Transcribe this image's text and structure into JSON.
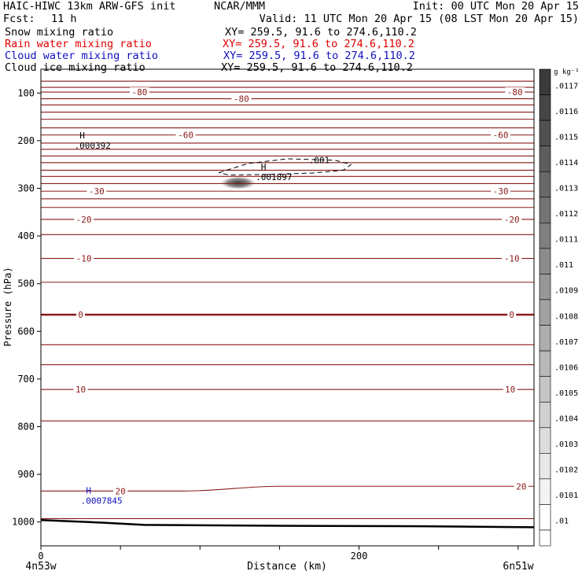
{
  "header": {
    "model": "HAIC-HIWC 13km ARW-GFS init",
    "org": "NCAR/MMM",
    "init": "Init: 00 UTC Mon 20 Apr 15",
    "fcst_label": "Fcst:",
    "fcst_value": "11 h",
    "valid": "Valid: 11 UTC Mon 20 Apr 15 (08 LST Mon 20 Apr 15)",
    "fields": [
      {
        "name": "Snow mixing ratio",
        "xy": "XY= 259.5, 91.6 to 274.6,110.2",
        "color": "#000000"
      },
      {
        "name": "Rain water mixing ratio",
        "xy": "XY= 259.5, 91.6 to 274.6,110.2",
        "color": "#e00000"
      },
      {
        "name": "Cloud water mixing ratio",
        "xy": "XY= 259.5, 91.6 to 274.6,110.2",
        "color": "#1010c0"
      },
      {
        "name": "Cloud ice mixing ratio",
        "xy": "XY= 259.5, 91.6 to 274.6,110.2",
        "color": "#000000"
      }
    ]
  },
  "chart_data": {
    "type": "cross-section",
    "xlabel": "Distance (km)",
    "ylabel": "Pressure (hPa)",
    "xlim": [
      0,
      310
    ],
    "ylim": [
      1050,
      50
    ],
    "x_ticks": [
      0,
      50,
      100,
      150,
      200,
      250,
      300
    ],
    "x_tick_labels": [
      {
        "x": 0,
        "label": "0"
      },
      {
        "x": 200,
        "label": "200"
      }
    ],
    "y_ticks": [
      100,
      200,
      300,
      400,
      500,
      600,
      700,
      800,
      900,
      1000
    ],
    "endpoint_left": "4n53w",
    "endpoint_right": "6n51w",
    "colorbar": {
      "unit": "g kg⁻¹",
      "levels": [
        ".0117",
        ".0116",
        ".0115",
        ".0114",
        ".0113",
        ".0112",
        ".0111",
        ".011",
        ".0109",
        ".0108",
        ".0107",
        ".0106",
        ".0105",
        ".0104",
        ".0103",
        ".0102",
        ".0101",
        ".01"
      ],
      "color_top": "#3a3a3a",
      "color_bottom": "#ffffff"
    },
    "temperature_isotherms_color": "#8b1a1a",
    "isotherms": [
      {
        "p": [
          75,
          75
        ]
      },
      {
        "p": [
          88,
          88
        ]
      },
      {
        "p": [
          98,
          98
        ],
        "labels": [
          {
            "x": 62,
            "text": "-80"
          },
          {
            "x": 298,
            "text": "-80"
          }
        ]
      },
      {
        "p": [
          112,
          112
        ],
        "labels": [
          {
            "x": 126,
            "text": "-80"
          }
        ]
      },
      {
        "p": [
          125,
          125
        ]
      },
      {
        "p": [
          140,
          140
        ]
      },
      {
        "p": [
          155,
          155
        ]
      },
      {
        "p": [
          173,
          173
        ]
      },
      {
        "p": [
          188,
          188
        ],
        "labels": [
          {
            "x": 91,
            "text": "-60"
          },
          {
            "x": 289,
            "text": "-60"
          }
        ]
      },
      {
        "p": [
          205,
          205
        ]
      },
      {
        "p": [
          218,
          218
        ]
      },
      {
        "p": [
          232,
          232
        ]
      },
      {
        "p": [
          246,
          246
        ]
      },
      {
        "p": [
          262,
          262
        ]
      },
      {
        "p": [
          275,
          275
        ]
      },
      {
        "p": [
          290,
          290
        ]
      },
      {
        "p": [
          306,
          306
        ],
        "labels": [
          {
            "x": 35,
            "text": "-30"
          },
          {
            "x": 289,
            "text": "-30"
          }
        ]
      },
      {
        "p": [
          322,
          322
        ]
      },
      {
        "p": [
          340,
          340
        ]
      },
      {
        "p": [
          365,
          365
        ],
        "labels": [
          {
            "x": 27,
            "text": "-20"
          },
          {
            "x": 296,
            "text": "-20"
          }
        ]
      },
      {
        "p": [
          397,
          397
        ]
      },
      {
        "p": [
          447,
          447
        ],
        "labels": [
          {
            "x": 27,
            "text": "-10"
          },
          {
            "x": 296,
            "text": "-10"
          }
        ]
      },
      {
        "p": [
          497,
          497
        ]
      },
      {
        "p": [
          565,
          565
        ],
        "bold": true,
        "labels": [
          {
            "x": 25,
            "text": "0"
          },
          {
            "x": 296,
            "text": "0"
          }
        ]
      },
      {
        "p": [
          628,
          628
        ]
      },
      {
        "p": [
          670,
          670
        ]
      },
      {
        "p": [
          722,
          722
        ],
        "labels": [
          {
            "x": 25,
            "text": "10"
          },
          {
            "x": 295,
            "text": "10"
          }
        ]
      },
      {
        "p": [
          788,
          788
        ]
      },
      {
        "p": [
          935,
          925
        ],
        "labels": [
          {
            "x": 50,
            "text": "20"
          },
          {
            "x": 302,
            "text": "20"
          }
        ]
      },
      {
        "p": [
          993,
          993
        ]
      }
    ],
    "terrain_surface": [
      {
        "x": 0,
        "p": 996
      },
      {
        "x": 30,
        "p": 1000
      },
      {
        "x": 65,
        "p": 1006
      },
      {
        "x": 150,
        "p": 1008
      },
      {
        "x": 240,
        "p": 1009
      },
      {
        "x": 310,
        "p": 1011
      }
    ],
    "contours": [
      {
        "field": "cloud ice",
        "style": "dashed",
        "label": ".001",
        "outline": [
          [
            112,
            267
          ],
          [
            130,
            248
          ],
          [
            155,
            238
          ],
          [
            185,
            241
          ],
          [
            195,
            250
          ],
          [
            190,
            262
          ],
          [
            170,
            268
          ],
          [
            140,
            271
          ],
          [
            118,
            272
          ]
        ]
      }
    ],
    "shaded_region": {
      "x": [
        113,
        135
      ],
      "p": [
        275,
        302
      ]
    },
    "markers": [
      {
        "text": "H",
        "value": ".000392",
        "x": 24,
        "p": 200,
        "color": "#000000"
      },
      {
        "text": "H",
        "value": ".001897",
        "x": 138,
        "p": 266,
        "color": "#000000"
      },
      {
        "text": "H",
        "value": ".0007845",
        "x": 28,
        "p": 945,
        "color": "#1010c0"
      }
    ]
  }
}
